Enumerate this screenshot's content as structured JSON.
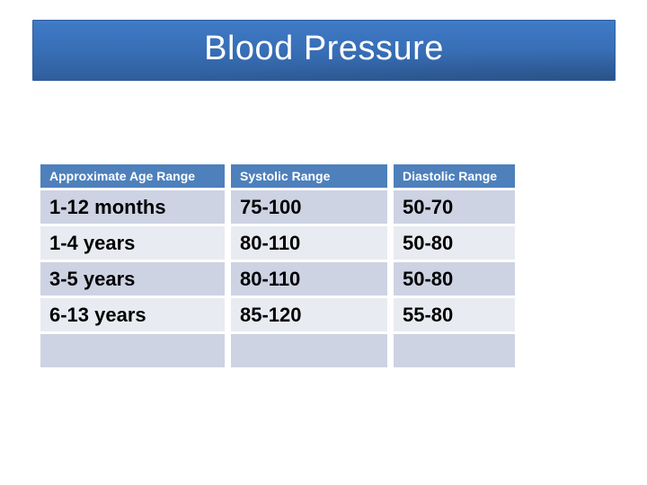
{
  "slide": {
    "title": "Blood Pressure"
  },
  "table": {
    "headers": [
      "Approximate Age Range",
      "Systolic Range",
      "Diastolic Range"
    ],
    "rows": [
      [
        "1-12 months",
        "75-100",
        "50-70"
      ],
      [
        "1-4 years",
        "80-110",
        "50-80"
      ],
      [
        "3-5 years",
        "80-110",
        "50-80"
      ],
      [
        "6-13 years",
        "85-120",
        "55-80"
      ],
      [
        "",
        "",
        ""
      ]
    ]
  },
  "colors": {
    "banner_top": "#3E79C4",
    "banner_bottom": "#305E9B",
    "banner_border": "#2E5E9C",
    "header_bg": "#4E80BC",
    "row_band_dark": "#CDD3E3",
    "row_band_light": "#E9EBF2",
    "header_text": "#FFFFFF",
    "body_text": "#000000",
    "slide_bg": "#FFFFFF"
  }
}
